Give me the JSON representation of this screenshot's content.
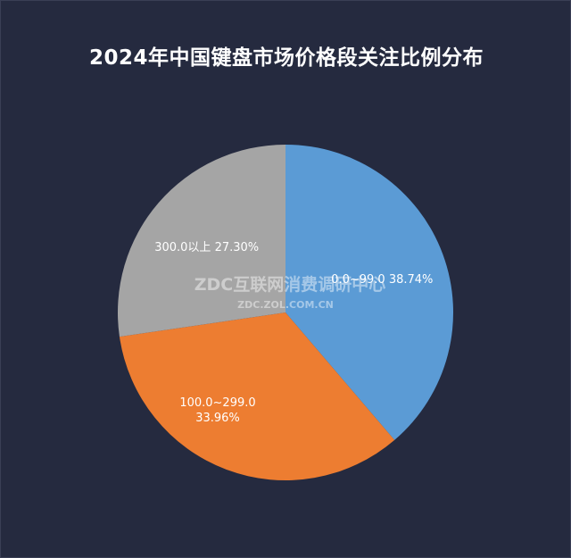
{
  "chart_data": {
    "type": "pie",
    "title": "2024年中国键盘市场价格段关注比例分布",
    "slices": [
      {
        "label": "0.0~99.0",
        "value": 38.74,
        "percent_text": "38.74%",
        "color": "#5b9bd5"
      },
      {
        "label": "100.0~299.0",
        "value": 33.96,
        "percent_text": "33.96%",
        "color": "#ed7d31"
      },
      {
        "label": "300.0以上",
        "value": 27.3,
        "percent_text": "27.30%",
        "color": "#a5a5a5"
      }
    ],
    "start": "12 o'clock, clockwise",
    "legend": "none",
    "background_color": "#252a3f"
  },
  "watermark": {
    "main": "ZDC互联网消费调研中心",
    "sub": "ZDC.ZOL.COM.CN"
  }
}
